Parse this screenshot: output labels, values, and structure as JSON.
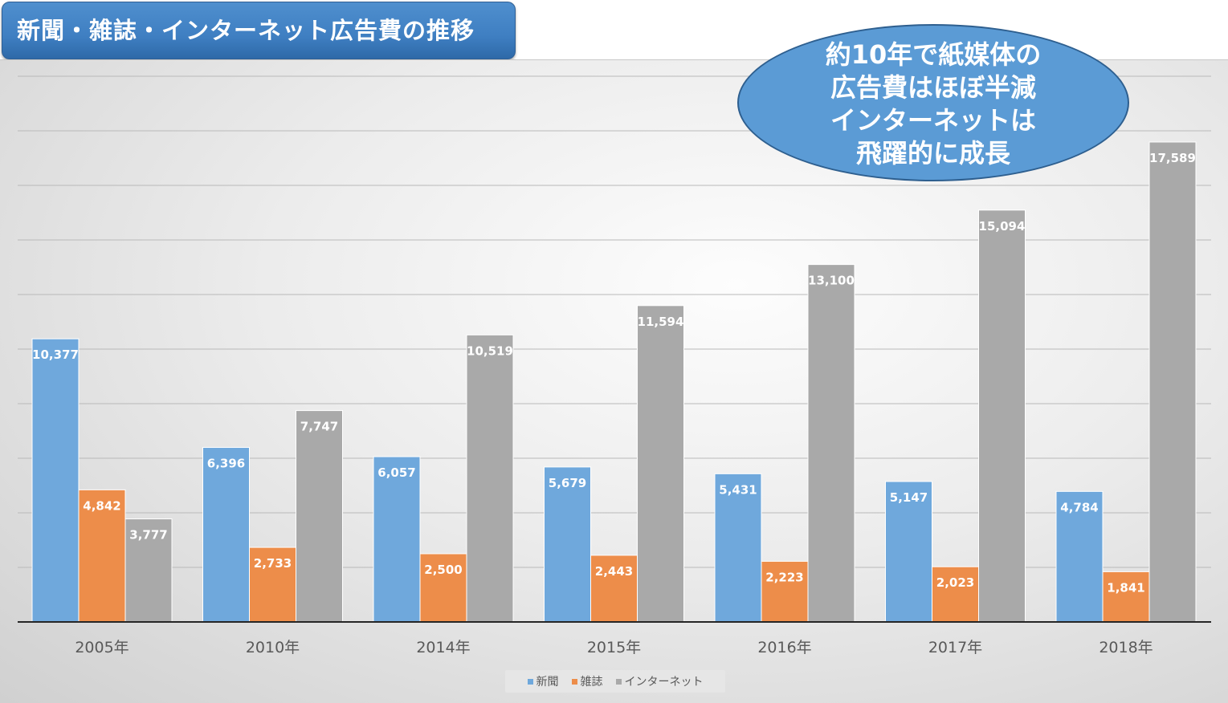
{
  "title": "新聞・雑誌・インターネット広告費の推移",
  "callout": {
    "lines": [
      "約10年で紙媒体の",
      "広告費はほぼ半減",
      "インターネットは",
      "飛躍的に成長"
    ]
  },
  "colors": {
    "newspaper": "#6fa8dc",
    "magazine": "#ed8d4a",
    "internet": "#a9a9a9",
    "title_bg": "#3f7fc2",
    "callout_bg": "#5b9bd5"
  },
  "chart_data": {
    "type": "bar",
    "title": "新聞・雑誌・インターネット広告費の推移",
    "categories": [
      "2005年",
      "2010年",
      "2014年",
      "2015年",
      "2016年",
      "2017年",
      "2018年"
    ],
    "series": [
      {
        "name": "新聞",
        "values": [
          10377,
          6396,
          6057,
          5679,
          5431,
          5147,
          4784
        ]
      },
      {
        "name": "雑誌",
        "values": [
          4842,
          2733,
          2500,
          2443,
          2223,
          2023,
          1841
        ]
      },
      {
        "name": "インターネット",
        "values": [
          3777,
          7747,
          10519,
          11594,
          13100,
          15094,
          17589
        ]
      }
    ],
    "ylim": [
      0,
      20000
    ],
    "y_gridline_step": 2000,
    "y_axis_labels_shown": false,
    "grid": true,
    "data_labels": true,
    "legend_position": "bottom"
  }
}
